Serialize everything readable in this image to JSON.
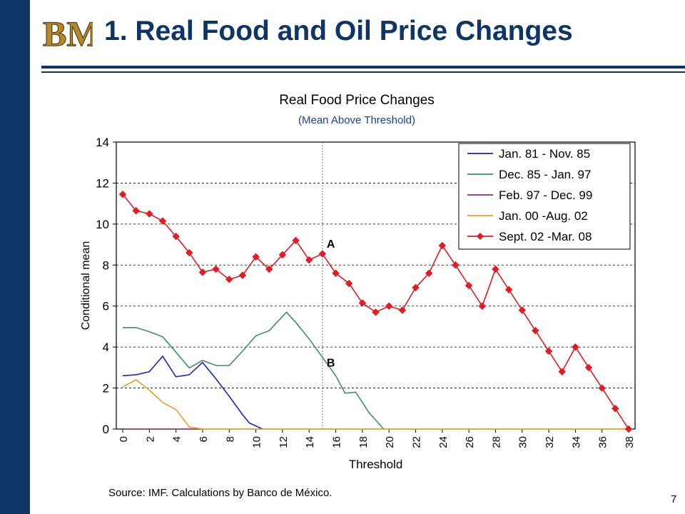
{
  "header": {
    "title": "1. Real Food and Oil Price Changes",
    "logo_text": "BM"
  },
  "footer": {
    "source": "Source: IMF. Calculations by Banco de México.",
    "page_number": "7"
  },
  "colors": {
    "sidebar": "#0e3566",
    "title": "#0e3566",
    "subtitle": "#1a3f99"
  },
  "chart_data": {
    "type": "line",
    "title": "Real Food Price Changes",
    "subtitle": "(Mean Above Threshold)",
    "xlabel": "Threshold",
    "ylabel": "Conditional mean",
    "xlim": [
      0,
      38
    ],
    "ylim": [
      0,
      14
    ],
    "x_ticks": [
      0,
      2,
      4,
      6,
      8,
      10,
      12,
      14,
      16,
      18,
      20,
      22,
      24,
      26,
      28,
      30,
      32,
      34,
      36,
      38
    ],
    "y_ticks": [
      0,
      2,
      4,
      6,
      8,
      10,
      12,
      14
    ],
    "grid": "horizontal dashed",
    "vertical_marker": 15,
    "legend_position": "top-right",
    "annotations": [
      {
        "text": "A",
        "x": 15,
        "y": 9.2
      },
      {
        "text": "B",
        "x": 15,
        "y": 3.4
      }
    ],
    "series": [
      {
        "name": "Jan. 81 - Nov. 85",
        "color": "#1a23c8",
        "marker": "none",
        "points": [
          [
            0,
            2.6
          ],
          [
            1,
            2.65
          ],
          [
            2,
            2.8
          ],
          [
            3,
            3.55
          ],
          [
            4,
            2.55
          ],
          [
            5,
            2.65
          ],
          [
            6,
            3.25
          ],
          [
            7,
            2.45
          ],
          [
            8,
            1.6
          ],
          [
            9,
            0.7
          ],
          [
            9.5,
            0.3
          ],
          [
            10.5,
            0
          ]
        ]
      },
      {
        "name": "Dec. 85 - Jan. 97",
        "color": "#3e8f67",
        "marker": "none",
        "points": [
          [
            0,
            4.95
          ],
          [
            1,
            4.95
          ],
          [
            2,
            4.75
          ],
          [
            3,
            4.5
          ],
          [
            4,
            3.75
          ],
          [
            5,
            2.98
          ],
          [
            6,
            3.35
          ],
          [
            7,
            3.1
          ],
          [
            8,
            3.1
          ],
          [
            9,
            3.8
          ],
          [
            10,
            4.55
          ],
          [
            11,
            4.8
          ],
          [
            12.3,
            5.7
          ],
          [
            13,
            5.2
          ],
          [
            14,
            4.4
          ],
          [
            15,
            3.5
          ],
          [
            16,
            2.6
          ],
          [
            16.7,
            1.75
          ],
          [
            17.5,
            1.8
          ],
          [
            18.5,
            0.8
          ],
          [
            19.6,
            0
          ]
        ]
      },
      {
        "name": "Feb. 97 - Dec. 99",
        "color": "#8a2b6e",
        "marker": "none",
        "points": [
          [
            0,
            0
          ],
          [
            6,
            0
          ]
        ]
      },
      {
        "name": "Jan. 00 -Aug. 02",
        "color": "#e8a020",
        "marker": "none",
        "points": [
          [
            0,
            2.05
          ],
          [
            1,
            2.4
          ],
          [
            2,
            1.9
          ],
          [
            3,
            1.3
          ],
          [
            4,
            0.95
          ],
          [
            5,
            0.1
          ],
          [
            6,
            0
          ],
          [
            38,
            0
          ]
        ]
      },
      {
        "name": "Sept. 02 -Mar. 08",
        "color": "#e31b23",
        "marker": "diamond",
        "points": [
          [
            0,
            11.45
          ],
          [
            1,
            10.65
          ],
          [
            2,
            10.5
          ],
          [
            3,
            10.15
          ],
          [
            4,
            9.4
          ],
          [
            5,
            8.6
          ],
          [
            6,
            7.65
          ],
          [
            7,
            7.8
          ],
          [
            8,
            7.3
          ],
          [
            9,
            7.5
          ],
          [
            10,
            8.4
          ],
          [
            11,
            7.8
          ],
          [
            12,
            8.5
          ],
          [
            13,
            9.2
          ],
          [
            14,
            8.25
          ],
          [
            15,
            8.55
          ],
          [
            16,
            7.6
          ],
          [
            17,
            7.1
          ],
          [
            18,
            6.15
          ],
          [
            19,
            5.7
          ],
          [
            20,
            6.0
          ],
          [
            21,
            5.8
          ],
          [
            22,
            6.9
          ],
          [
            23,
            7.6
          ],
          [
            24,
            8.95
          ],
          [
            25,
            8.0
          ],
          [
            26,
            7.0
          ],
          [
            27,
            6.0
          ],
          [
            28,
            7.8
          ],
          [
            29,
            6.8
          ],
          [
            30,
            5.8
          ],
          [
            31,
            4.8
          ],
          [
            32,
            3.8
          ],
          [
            33,
            2.8
          ],
          [
            34,
            4.0
          ],
          [
            35,
            3.0
          ],
          [
            36,
            2.0
          ],
          [
            37,
            1.0
          ],
          [
            38,
            0
          ]
        ]
      }
    ]
  }
}
